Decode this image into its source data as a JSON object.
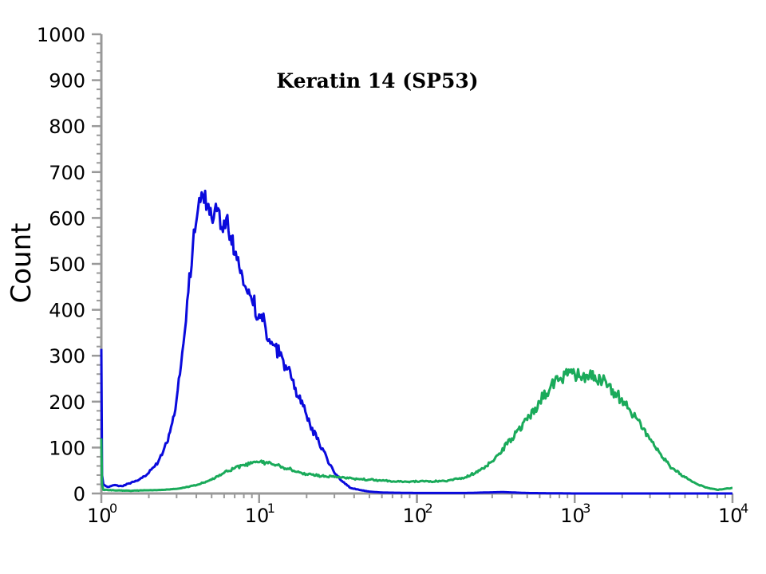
{
  "chart_data": {
    "type": "line",
    "title": "Keratin 14 (SP53)",
    "ylabel": "Count",
    "xlabel": "",
    "x_scale": "log",
    "xlim": [
      1,
      10000
    ],
    "ylim": [
      0,
      1000
    ],
    "yticks": [
      "0",
      "100",
      "200",
      "300",
      "400",
      "500",
      "600",
      "700",
      "800",
      "900",
      "1000"
    ],
    "xticks": [
      {
        "base": "10",
        "exp": "0"
      },
      {
        "base": "10",
        "exp": "1"
      },
      {
        "base": "10",
        "exp": "2"
      },
      {
        "base": "10",
        "exp": "3"
      },
      {
        "base": "10",
        "exp": "4"
      }
    ],
    "series": [
      {
        "color": "#0a0adc",
        "x": [
          1,
          1.01,
          1.03,
          1.1,
          1.2,
          1.35,
          1.5,
          1.7,
          2.0,
          2.3,
          2.6,
          2.9,
          3.2,
          3.5,
          3.8,
          4.1,
          4.4,
          4.7,
          5.0,
          5.4,
          5.8,
          6.2,
          6.6,
          7.0,
          7.6,
          8.2,
          9.0,
          10.0,
          11.0,
          12.0,
          13.5,
          15.0,
          17.0,
          19.0,
          21.0,
          24.0,
          27.0,
          30.0,
          34.0,
          38.0,
          43.0,
          50.0,
          60.0,
          100,
          200,
          350,
          500,
          1000,
          5000,
          10000
        ],
        "y": [
          315,
          40,
          20,
          14,
          18,
          16,
          22,
          28,
          45,
          70,
          110,
          170,
          280,
          420,
          540,
          620,
          650,
          630,
          600,
          615,
          580,
          600,
          560,
          520,
          480,
          450,
          420,
          390,
          360,
          330,
          300,
          270,
          230,
          190,
          150,
          110,
          75,
          45,
          25,
          12,
          8,
          4,
          2,
          1,
          1,
          3,
          1,
          0,
          0,
          0
        ]
      },
      {
        "color": "#1aaa5a",
        "x": [
          1,
          1.01,
          1.03,
          1.2,
          1.5,
          2.0,
          2.5,
          3.0,
          4.0,
          5.0,
          6.0,
          7.0,
          8.0,
          9.0,
          10.0,
          11.0,
          12.0,
          14.0,
          16.0,
          18.0,
          20.0,
          25.0,
          30.0,
          35.0,
          40.0,
          50.0,
          60.0,
          80.0,
          100,
          150,
          200,
          250,
          300,
          400,
          500,
          600,
          700,
          800,
          900,
          1000,
          1200,
          1500,
          1800,
          2200,
          2700,
          3300,
          4000,
          5000,
          6000,
          7000,
          8000,
          10000
        ],
        "y": [
          120,
          20,
          8,
          7,
          6,
          7,
          8,
          10,
          18,
          30,
          45,
          55,
          62,
          66,
          68,
          67,
          64,
          58,
          52,
          46,
          42,
          38,
          36,
          34,
          32,
          30,
          28,
          26,
          26,
          27,
          34,
          50,
          70,
          120,
          160,
          200,
          230,
          248,
          257,
          260,
          258,
          245,
          220,
          185,
          140,
          95,
          60,
          35,
          20,
          12,
          8,
          12
        ]
      }
    ]
  }
}
